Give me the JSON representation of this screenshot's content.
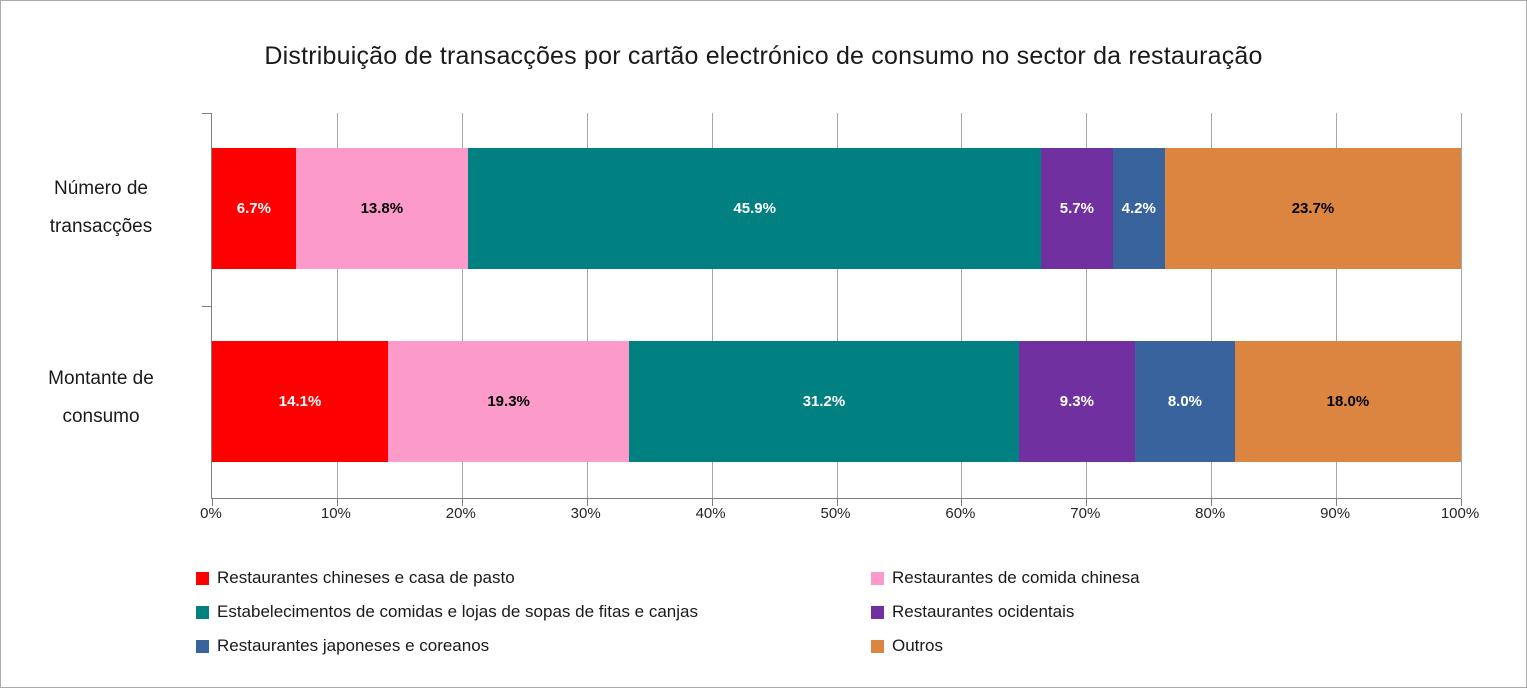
{
  "chart_data": {
    "type": "bar",
    "orientation": "horizontal-stacked",
    "title": "Distribuição de transacções por cartão electrónico de consumo no sector da restauração",
    "categories": [
      "Número de transacções",
      "Montante de consumo"
    ],
    "category_lines": [
      [
        "Número de",
        "transacções"
      ],
      [
        "Montante de",
        "consumo"
      ]
    ],
    "series": [
      {
        "name": "Restaurantes chineses e casa de pasto",
        "color": "#fe0000",
        "label_color": "#ffffff",
        "values": [
          6.7,
          14.1
        ]
      },
      {
        "name": "Restaurantes de comida chinesa",
        "color": "#fc9bca",
        "label_color": "#000000",
        "values": [
          13.8,
          19.3
        ]
      },
      {
        "name": "Estabelecimentos de comidas e lojas de sopas de fitas e canjas",
        "color": "#008080",
        "label_color": "#ffffff",
        "values": [
          45.9,
          31.2
        ]
      },
      {
        "name": "Restaurantes ocidentais",
        "color": "#7030a0",
        "label_color": "#ffffff",
        "values": [
          5.7,
          9.3
        ]
      },
      {
        "name": "Restaurantes japoneses e coreanos",
        "color": "#38639c",
        "label_color": "#ffffff",
        "values": [
          4.2,
          8.0
        ]
      },
      {
        "name": "Outros",
        "color": "#dc8540",
        "label_color": "#000000",
        "values": [
          23.7,
          18.0
        ]
      }
    ],
    "value_label_suffix": "%",
    "x_ticks": [
      "0%",
      "10%",
      "20%",
      "30%",
      "40%",
      "50%",
      "60%",
      "70%",
      "80%",
      "90%",
      "100%"
    ],
    "xlim": [
      0,
      100
    ],
    "grid": true,
    "legend_position": "bottom",
    "axis_color": "#7f7f7f",
    "gridline_color": "#a6a6a6"
  }
}
